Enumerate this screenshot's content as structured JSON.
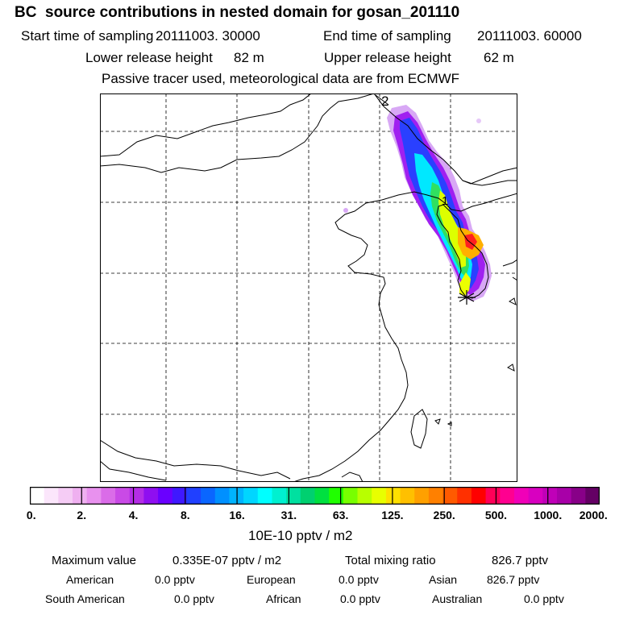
{
  "header": {
    "title": "BC  source contributions in nested domain for gosan_201110",
    "start_label": "Start time of sampling",
    "start_value": "20111003. 30000",
    "end_label": "End time of sampling",
    "end_value": "20111003. 60000",
    "lower_label": "Lower release height",
    "lower_value": "82 m",
    "upper_label": "Upper release height",
    "upper_value": "62 m",
    "tracer_note": "Passive tracer used, meteorological data are from ECMWF"
  },
  "map": {
    "markers": [
      "2",
      "1"
    ],
    "receptor": "gosan"
  },
  "colorbar": {
    "ticks": [
      "0.",
      "2.",
      "4.",
      "8.",
      "16.",
      "31.",
      "63.",
      "125.",
      "250.",
      "500.",
      "1000.",
      "2000."
    ],
    "unit": "10E-10 pptv / m2",
    "colors": [
      "#ffffff",
      "#fbe6fb",
      "#f5ccf5",
      "#efb0f0",
      "#e891ee",
      "#da6ce8",
      "#c94ae6",
      "#b42de6",
      "#8f0ff0",
      "#6a00ff",
      "#3f18ff",
      "#2040ff",
      "#0a66ff",
      "#0090ff",
      "#00b4ff",
      "#00d6ff",
      "#00ffff",
      "#00f0d0",
      "#00e0a0",
      "#00d070",
      "#00e040",
      "#20ff00",
      "#78ff00",
      "#b8ff00",
      "#e8ff00",
      "#ffe000",
      "#ffc000",
      "#ffa000",
      "#ff8000",
      "#ff5a00",
      "#ff3000",
      "#ff0000",
      "#ff0058",
      "#ff0090",
      "#f000b8",
      "#d800c0",
      "#c000b8",
      "#a800a8",
      "#880088",
      "#640064"
    ]
  },
  "footer": {
    "max_label": "Maximum value",
    "max_value": "0.335E-07 pptv / m2",
    "total_label": "Total mixing ratio",
    "total_value": "826.7 pptv",
    "regions": [
      {
        "name": "American",
        "value": "0.0 pptv"
      },
      {
        "name": "European",
        "value": "0.0 pptv"
      },
      {
        "name": "Asian",
        "value": "826.7 pptv"
      },
      {
        "name": "South American",
        "value": "0.0 pptv"
      },
      {
        "name": "African",
        "value": "0.0 pptv"
      },
      {
        "name": "Australian",
        "value": "0.0 pptv"
      }
    ]
  }
}
